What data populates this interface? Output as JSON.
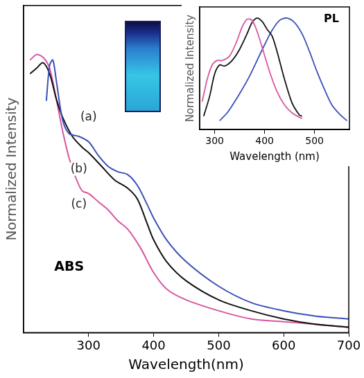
{
  "chart_data": [
    {
      "type": "line",
      "y_label": "Normalized Intensity",
      "x_label": "Wavelength(nm)",
      "annotations": [
        "ABS"
      ],
      "xlim": [
        200,
        700
      ],
      "xticks": [
        300,
        400,
        500,
        600,
        700
      ],
      "ylim": [
        0,
        1.2
      ],
      "tick_labels": "x",
      "grid": false,
      "series": [
        {
          "name": "(a)",
          "color": "#3a4fb8",
          "x": [
            235,
            240,
            245,
            250,
            260,
            270,
            285,
            300,
            315,
            330,
            345,
            360,
            375,
            390,
            400,
            420,
            450,
            500,
            550,
            600,
            650,
            700
          ],
          "values": [
            0.85,
            0.98,
            1.0,
            0.93,
            0.78,
            0.73,
            0.72,
            0.7,
            0.65,
            0.61,
            0.59,
            0.58,
            0.54,
            0.47,
            0.42,
            0.34,
            0.26,
            0.17,
            0.11,
            0.08,
            0.06,
            0.05
          ]
        },
        {
          "name": "(b)",
          "color": "#111111",
          "x": [
            210,
            220,
            230,
            240,
            250,
            260,
            275,
            290,
            300,
            320,
            340,
            360,
            375,
            390,
            400,
            420,
            450,
            500,
            550,
            600,
            650,
            700
          ],
          "values": [
            0.95,
            0.97,
            0.99,
            0.95,
            0.86,
            0.79,
            0.72,
            0.68,
            0.66,
            0.61,
            0.56,
            0.53,
            0.49,
            0.4,
            0.34,
            0.26,
            0.19,
            0.12,
            0.08,
            0.05,
            0.03,
            0.02
          ]
        },
        {
          "name": "(c)",
          "color": "#d9559f",
          "x": [
            210,
            220,
            230,
            240,
            250,
            260,
            270,
            280,
            290,
            300,
            315,
            330,
            345,
            360,
            380,
            400,
            420,
            450,
            500,
            550,
            600,
            650,
            700
          ],
          "values": [
            1.0,
            1.02,
            1.01,
            0.97,
            0.86,
            0.74,
            0.64,
            0.57,
            0.52,
            0.51,
            0.48,
            0.45,
            0.41,
            0.38,
            0.31,
            0.22,
            0.16,
            0.12,
            0.08,
            0.05,
            0.04,
            0.03,
            0.02
          ]
        }
      ]
    },
    {
      "type": "line",
      "y_label": "Normalized Intensity",
      "x_label": "Wavelength (nm)",
      "annotations": [
        "PL"
      ],
      "xlim": [
        270,
        570
      ],
      "xticks": [
        300,
        400,
        500
      ],
      "ylim": [
        0,
        1.1
      ],
      "tick_labels": "x",
      "grid": false,
      "series": [
        {
          "color": "#d9559f",
          "x": [
            275,
            285,
            295,
            305,
            315,
            330,
            345,
            355,
            365,
            375,
            385,
            395,
            410,
            425,
            440,
            455,
            470,
            475
          ],
          "values": [
            0.25,
            0.45,
            0.58,
            0.62,
            0.62,
            0.66,
            0.8,
            0.92,
            0.99,
            0.98,
            0.88,
            0.74,
            0.52,
            0.34,
            0.22,
            0.15,
            0.11,
            0.1
          ]
        },
        {
          "color": "#111111",
          "x": [
            278,
            290,
            300,
            310,
            320,
            335,
            350,
            365,
            375,
            385,
            395,
            405,
            415,
            425,
            440,
            455,
            470,
            475
          ],
          "values": [
            0.12,
            0.3,
            0.5,
            0.58,
            0.57,
            0.62,
            0.72,
            0.86,
            0.96,
            1.0,
            0.97,
            0.9,
            0.84,
            0.7,
            0.45,
            0.24,
            0.13,
            0.12
          ]
        },
        {
          "color": "#3a4fb8",
          "x": [
            310,
            325,
            340,
            355,
            370,
            385,
            400,
            415,
            430,
            445,
            460,
            475,
            490,
            505,
            520,
            535,
            550,
            565
          ],
          "values": [
            0.08,
            0.15,
            0.25,
            0.36,
            0.48,
            0.62,
            0.76,
            0.89,
            0.98,
            1.0,
            0.96,
            0.86,
            0.7,
            0.52,
            0.36,
            0.22,
            0.14,
            0.08
          ]
        }
      ]
    }
  ]
}
